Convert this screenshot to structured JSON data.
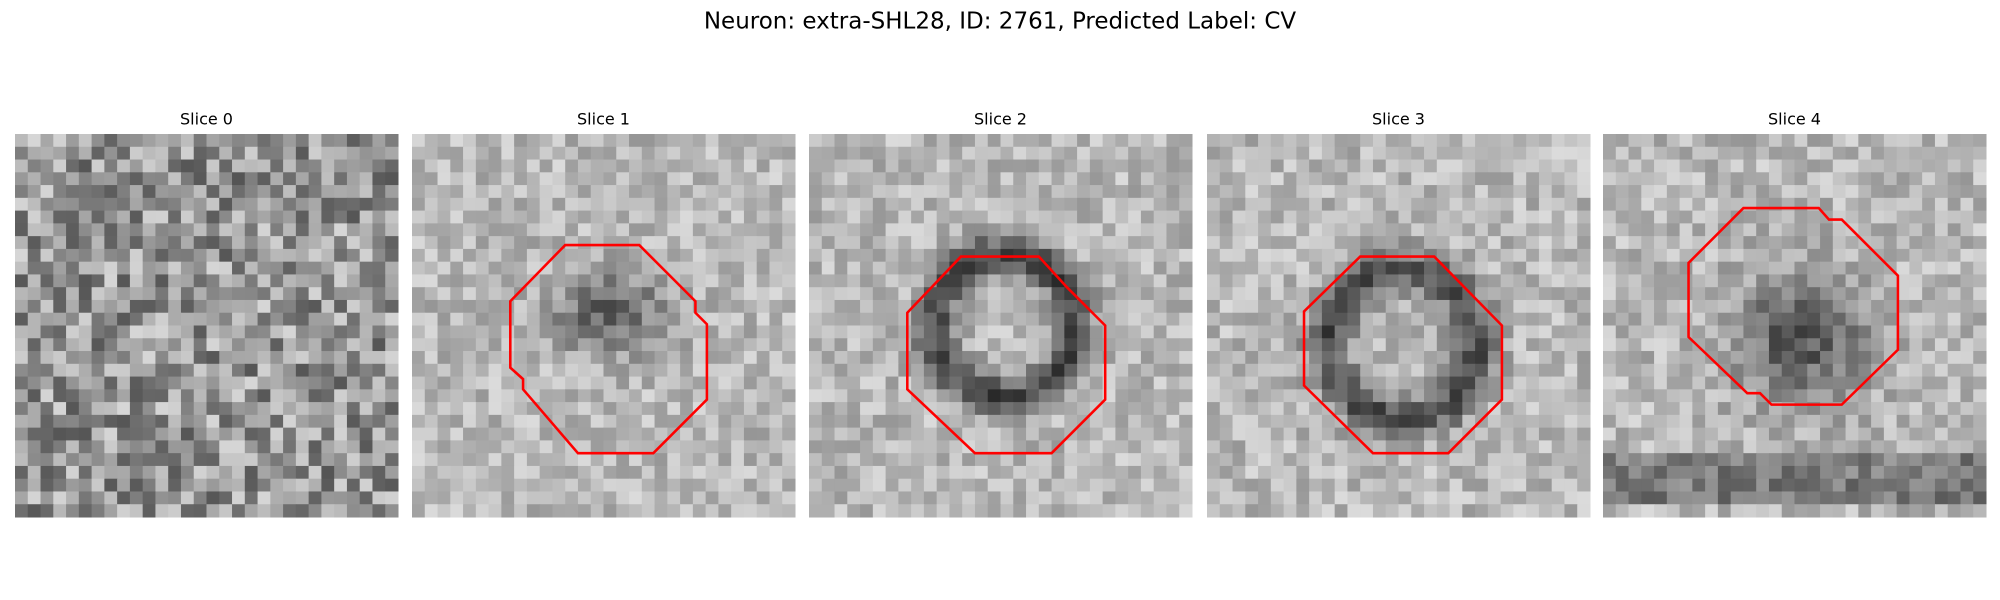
{
  "header": {
    "title": "Neuron: extra-SHL28, ID: 2761, Predicted Label: CV"
  },
  "panels": [
    {
      "label": "Slice 0"
    },
    {
      "label": "Slice 1"
    },
    {
      "label": "Slice 2"
    },
    {
      "label": "Slice 3"
    },
    {
      "label": "Slice 4"
    }
  ]
}
